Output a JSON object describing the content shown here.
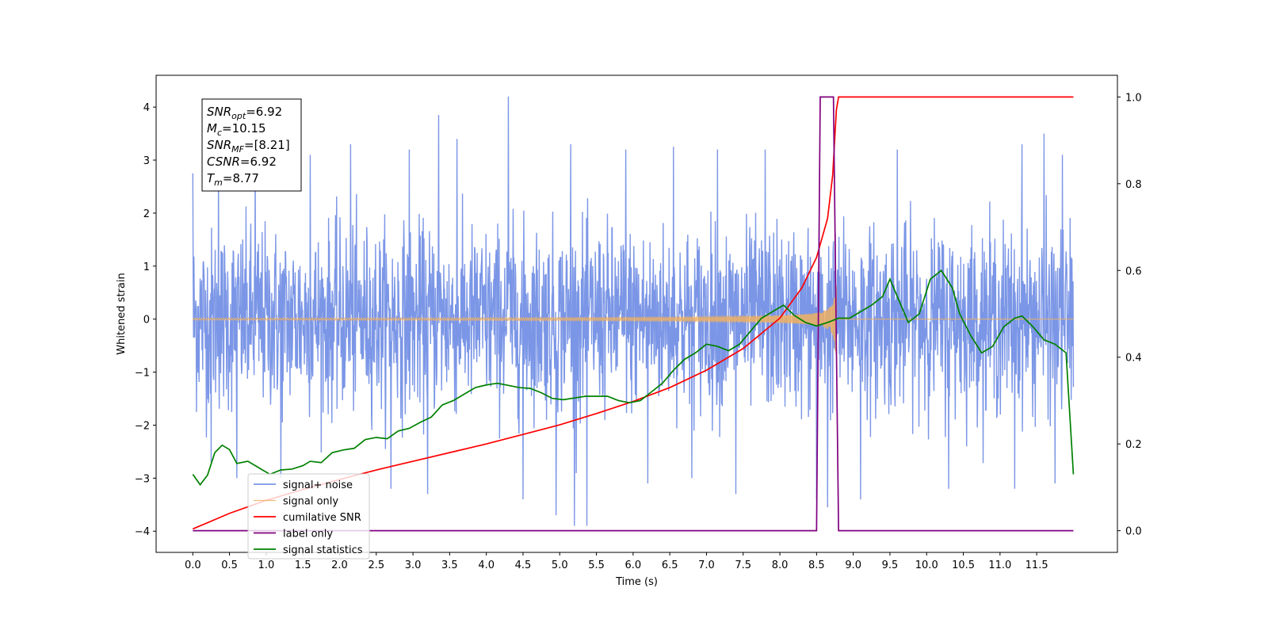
{
  "chart_data": {
    "type": "line",
    "xlabel": "Time (s)",
    "ylabel": "Whitened strain",
    "xlim": [
      -0.5,
      12.6
    ],
    "ylim": [
      -4.4,
      4.6
    ],
    "ylim_right": [
      -0.05,
      1.05
    ],
    "x_ticks": [
      "0.0",
      "0.5",
      "1.0",
      "1.5",
      "2.0",
      "2.5",
      "3.0",
      "3.5",
      "4.0",
      "4.5",
      "5.0",
      "5.5",
      "6.0",
      "6.5",
      "7.0",
      "7.5",
      "8.0",
      "8.5",
      "9.0",
      "9.5",
      "10.0",
      "10.5",
      "11.0",
      "11.5"
    ],
    "y_ticks_left": [
      "−4",
      "−3",
      "−2",
      "−1",
      "0",
      "1",
      "2",
      "3",
      "4"
    ],
    "y_ticks_right": [
      "0.0",
      "0.2",
      "0.4",
      "0.6",
      "0.8",
      "1.0"
    ],
    "grid": false,
    "legend_placement": "lower-left",
    "annotation": {
      "lines": [
        {
          "main": "SNR",
          "sub": "opt",
          "rest": "=6.92"
        },
        {
          "main": "M",
          "sub": "c",
          "rest": "=10.15"
        },
        {
          "main": "SNR",
          "sub": "MF",
          "rest": "=[8.21]"
        },
        {
          "main": "CSNR",
          "sub": "",
          "rest": "=6.92"
        },
        {
          "main": "T",
          "sub": "m",
          "rest": "=8.77"
        }
      ]
    },
    "series": [
      {
        "name": "signal+ noise",
        "axis": "left",
        "color": "#7b96e6",
        "description": "dense noisy strain, mostly within about ±1.5 to ±2.5, spikes up to 4.2 near t=4.3 and 3.8 near t=3.3, dips to −3.9 near t=5.2 and 5.4",
        "x_range": [
          0.0,
          12.0
        ],
        "spikes": [
          {
            "x": 0.0,
            "y": 2.75
          },
          {
            "x": 0.35,
            "y": 3.0
          },
          {
            "x": 0.85,
            "y": 3.2
          },
          {
            "x": 1.6,
            "y": 3.1
          },
          {
            "x": 2.15,
            "y": 3.3
          },
          {
            "x": 2.95,
            "y": 3.2
          },
          {
            "x": 3.35,
            "y": 3.85
          },
          {
            "x": 3.6,
            "y": 3.4
          },
          {
            "x": 4.3,
            "y": 4.2
          },
          {
            "x": 5.15,
            "y": 3.3
          },
          {
            "x": 5.9,
            "y": 3.2
          },
          {
            "x": 6.55,
            "y": 3.25
          },
          {
            "x": 7.15,
            "y": 3.2
          },
          {
            "x": 7.8,
            "y": 3.2
          },
          {
            "x": 9.6,
            "y": 3.2
          },
          {
            "x": 11.3,
            "y": 3.3
          },
          {
            "x": 11.6,
            "y": 3.5
          },
          {
            "x": 11.85,
            "y": 3.1
          },
          {
            "x": 0.25,
            "y": -2.7
          },
          {
            "x": 0.6,
            "y": -3.0
          },
          {
            "x": 1.2,
            "y": -3.0
          },
          {
            "x": 2.7,
            "y": -3.2
          },
          {
            "x": 3.2,
            "y": -3.3
          },
          {
            "x": 4.5,
            "y": -3.4
          },
          {
            "x": 4.95,
            "y": -3.7
          },
          {
            "x": 5.2,
            "y": -3.9
          },
          {
            "x": 5.37,
            "y": -3.9
          },
          {
            "x": 6.2,
            "y": -3.1
          },
          {
            "x": 6.8,
            "y": -3.0
          },
          {
            "x": 7.4,
            "y": -3.3
          },
          {
            "x": 8.5,
            "y": -3.4
          },
          {
            "x": 8.65,
            "y": -3.55
          },
          {
            "x": 9.1,
            "y": -3.4
          },
          {
            "x": 10.3,
            "y": -3.2
          },
          {
            "x": 11.2,
            "y": -3.2
          },
          {
            "x": 11.75,
            "y": -3.1
          }
        ]
      },
      {
        "name": "signal only",
        "axis": "left",
        "color": "#f0b060",
        "description": "chirp centred on 0, amplitude growing from ~0.01 to ~0.8 at t≈8.76, zero afterward",
        "x_range": [
          0.0,
          12.0
        ],
        "merger_time": 8.77
      },
      {
        "name": "cumilative SNR",
        "axis": "right",
        "color": "#ff0000",
        "points": [
          [
            0.0,
            0.004
          ],
          [
            0.5,
            0.04
          ],
          [
            1.0,
            0.07
          ],
          [
            1.5,
            0.095
          ],
          [
            2.0,
            0.118
          ],
          [
            2.5,
            0.14
          ],
          [
            3.0,
            0.16
          ],
          [
            3.5,
            0.18
          ],
          [
            4.0,
            0.2
          ],
          [
            4.5,
            0.222
          ],
          [
            5.0,
            0.244
          ],
          [
            5.5,
            0.27
          ],
          [
            6.0,
            0.298
          ],
          [
            6.5,
            0.33
          ],
          [
            7.0,
            0.37
          ],
          [
            7.5,
            0.42
          ],
          [
            8.0,
            0.49
          ],
          [
            8.3,
            0.56
          ],
          [
            8.5,
            0.63
          ],
          [
            8.65,
            0.72
          ],
          [
            8.72,
            0.82
          ],
          [
            8.77,
            0.97
          ],
          [
            8.8,
            1.0
          ],
          [
            12.0,
            1.0
          ]
        ]
      },
      {
        "name": "label only",
        "axis": "right",
        "color": "#800080",
        "points": [
          [
            0.0,
            0.0
          ],
          [
            8.5,
            0.0
          ],
          [
            8.55,
            1.0
          ],
          [
            8.73,
            1.0
          ],
          [
            8.8,
            0.0
          ],
          [
            12.0,
            0.0
          ]
        ]
      },
      {
        "name": "signal statistics",
        "axis": "right",
        "color": "#008000",
        "points": [
          [
            0.0,
            0.13
          ],
          [
            0.1,
            0.106
          ],
          [
            0.2,
            0.128
          ],
          [
            0.3,
            0.18
          ],
          [
            0.4,
            0.197
          ],
          [
            0.5,
            0.187
          ],
          [
            0.6,
            0.155
          ],
          [
            0.75,
            0.16
          ],
          [
            0.9,
            0.145
          ],
          [
            1.05,
            0.13
          ],
          [
            1.2,
            0.14
          ],
          [
            1.35,
            0.142
          ],
          [
            1.5,
            0.15
          ],
          [
            1.6,
            0.16
          ],
          [
            1.75,
            0.157
          ],
          [
            1.9,
            0.18
          ],
          [
            2.05,
            0.186
          ],
          [
            2.2,
            0.19
          ],
          [
            2.35,
            0.21
          ],
          [
            2.5,
            0.215
          ],
          [
            2.65,
            0.212
          ],
          [
            2.8,
            0.23
          ],
          [
            2.95,
            0.236
          ],
          [
            3.1,
            0.25
          ],
          [
            3.25,
            0.262
          ],
          [
            3.4,
            0.29
          ],
          [
            3.55,
            0.3
          ],
          [
            3.7,
            0.315
          ],
          [
            3.85,
            0.33
          ],
          [
            4.0,
            0.336
          ],
          [
            4.15,
            0.34
          ],
          [
            4.3,
            0.335
          ],
          [
            4.45,
            0.33
          ],
          [
            4.6,
            0.328
          ],
          [
            4.75,
            0.318
          ],
          [
            4.9,
            0.305
          ],
          [
            5.05,
            0.302
          ],
          [
            5.2,
            0.306
          ],
          [
            5.35,
            0.31
          ],
          [
            5.5,
            0.31
          ],
          [
            5.65,
            0.31
          ],
          [
            5.8,
            0.3
          ],
          [
            5.95,
            0.295
          ],
          [
            6.1,
            0.3
          ],
          [
            6.25,
            0.32
          ],
          [
            6.4,
            0.34
          ],
          [
            6.55,
            0.37
          ],
          [
            6.7,
            0.395
          ],
          [
            6.85,
            0.41
          ],
          [
            7.0,
            0.43
          ],
          [
            7.15,
            0.425
          ],
          [
            7.3,
            0.415
          ],
          [
            7.45,
            0.43
          ],
          [
            7.6,
            0.46
          ],
          [
            7.75,
            0.49
          ],
          [
            7.9,
            0.505
          ],
          [
            8.05,
            0.52
          ],
          [
            8.2,
            0.496
          ],
          [
            8.35,
            0.48
          ],
          [
            8.5,
            0.472
          ],
          [
            8.65,
            0.48
          ],
          [
            8.8,
            0.49
          ],
          [
            8.95,
            0.49
          ],
          [
            9.1,
            0.505
          ],
          [
            9.25,
            0.52
          ],
          [
            9.4,
            0.54
          ],
          [
            9.5,
            0.58
          ],
          [
            9.6,
            0.54
          ],
          [
            9.75,
            0.48
          ],
          [
            9.9,
            0.5
          ],
          [
            10.05,
            0.58
          ],
          [
            10.2,
            0.6
          ],
          [
            10.35,
            0.56
          ],
          [
            10.45,
            0.5
          ],
          [
            10.6,
            0.45
          ],
          [
            10.75,
            0.41
          ],
          [
            10.9,
            0.425
          ],
          [
            11.05,
            0.47
          ],
          [
            11.2,
            0.49
          ],
          [
            11.3,
            0.495
          ],
          [
            11.45,
            0.47
          ],
          [
            11.6,
            0.44
          ],
          [
            11.75,
            0.43
          ],
          [
            11.9,
            0.41
          ],
          [
            12.0,
            0.13
          ]
        ]
      }
    ]
  }
}
